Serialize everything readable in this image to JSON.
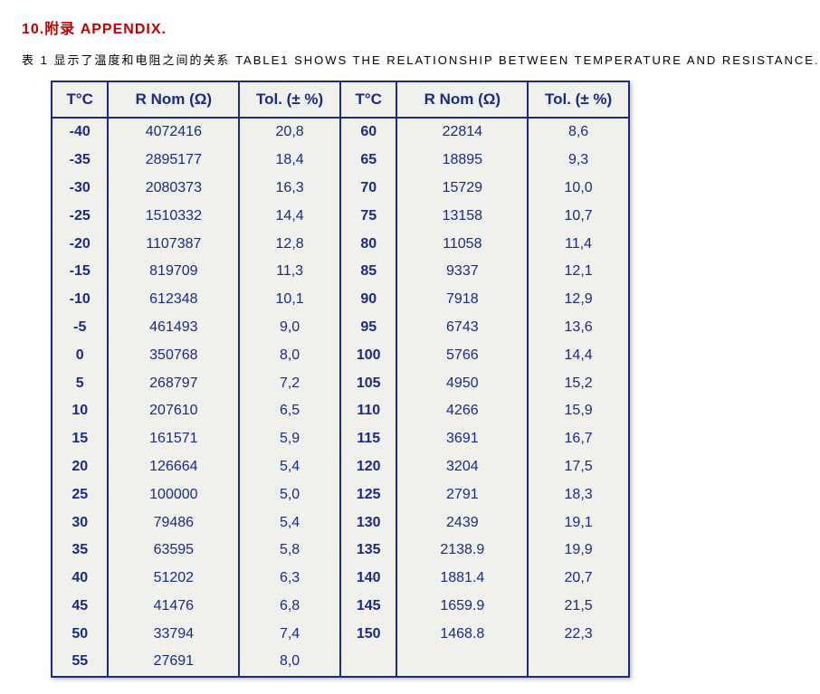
{
  "heading": "10.附录 APPENDIX.",
  "caption": "表 1 显示了温度和电阻之间的关系 TABLE1 SHOWS THE RELATIONSHIP BETWEEN TEMPERATURE AND RESISTANCE.",
  "table": {
    "type": "table",
    "colors": {
      "heading_text": "#c00000",
      "caption_text": "#000000",
      "cell_text": "#1a2a8a",
      "border": "#1a2a8a",
      "background": "#f0f0ec"
    },
    "typography": {
      "header_fontsize_pt": 13,
      "body_fontsize_pt": 12,
      "tc_fontweight": "bold",
      "font_family": "Arial"
    },
    "columns": [
      {
        "label": "T°C",
        "width_pct": 9.5,
        "align": "center"
      },
      {
        "label": "R Nom (Ω)",
        "width_pct": 22,
        "align": "center"
      },
      {
        "label": "Tol. (± %)",
        "width_pct": 17,
        "align": "center"
      },
      {
        "label": "T°C",
        "width_pct": 9.5,
        "align": "center"
      },
      {
        "label": "R Nom (Ω)",
        "width_pct": 22,
        "align": "center"
      },
      {
        "label": "Tol. (± %)",
        "width_pct": 17,
        "align": "center"
      }
    ],
    "left_block": [
      {
        "tc": "-40",
        "rnom": "4072416",
        "tol": "20,8"
      },
      {
        "tc": "-35",
        "rnom": "2895177",
        "tol": "18,4"
      },
      {
        "tc": "-30",
        "rnom": "2080373",
        "tol": "16,3"
      },
      {
        "tc": "-25",
        "rnom": "1510332",
        "tol": "14,4"
      },
      {
        "tc": "-20",
        "rnom": "1107387",
        "tol": "12,8"
      },
      {
        "tc": "-15",
        "rnom": "819709",
        "tol": "11,3"
      },
      {
        "tc": "-10",
        "rnom": "612348",
        "tol": "10,1"
      },
      {
        "tc": "-5",
        "rnom": "461493",
        "tol": "9,0"
      },
      {
        "tc": "0",
        "rnom": "350768",
        "tol": "8,0"
      },
      {
        "tc": "5",
        "rnom": "268797",
        "tol": "7,2"
      },
      {
        "tc": "10",
        "rnom": "207610",
        "tol": "6,5"
      },
      {
        "tc": "15",
        "rnom": "161571",
        "tol": "5,9"
      },
      {
        "tc": "20",
        "rnom": "126664",
        "tol": "5,4"
      },
      {
        "tc": "25",
        "rnom": "100000",
        "tol": "5,0"
      },
      {
        "tc": "30",
        "rnom": "79486",
        "tol": "5,4"
      },
      {
        "tc": "35",
        "rnom": "63595",
        "tol": "5,8"
      },
      {
        "tc": "40",
        "rnom": "51202",
        "tol": "6,3"
      },
      {
        "tc": "45",
        "rnom": "41476",
        "tol": "6,8"
      },
      {
        "tc": "50",
        "rnom": "33794",
        "tol": "7,4"
      },
      {
        "tc": "55",
        "rnom": "27691",
        "tol": "8,0"
      }
    ],
    "right_block": [
      {
        "tc": "60",
        "rnom": "22814",
        "tol": "8,6"
      },
      {
        "tc": "65",
        "rnom": "18895",
        "tol": "9,3"
      },
      {
        "tc": "70",
        "rnom": "15729",
        "tol": "10,0"
      },
      {
        "tc": "75",
        "rnom": "13158",
        "tol": "10,7"
      },
      {
        "tc": "80",
        "rnom": "11058",
        "tol": "11,4"
      },
      {
        "tc": "85",
        "rnom": "9337",
        "tol": "12,1"
      },
      {
        "tc": "90",
        "rnom": "7918",
        "tol": "12,9"
      },
      {
        "tc": "95",
        "rnom": "6743",
        "tol": "13,6"
      },
      {
        "tc": "100",
        "rnom": "5766",
        "tol": "14,4"
      },
      {
        "tc": "105",
        "rnom": "4950",
        "tol": "15,2"
      },
      {
        "tc": "110",
        "rnom": "4266",
        "tol": "15,9"
      },
      {
        "tc": "115",
        "rnom": "3691",
        "tol": "16,7"
      },
      {
        "tc": "120",
        "rnom": "3204",
        "tol": "17,5"
      },
      {
        "tc": "125",
        "rnom": "2791",
        "tol": "18,3"
      },
      {
        "tc": "130",
        "rnom": "2439",
        "tol": "19,1"
      },
      {
        "tc": "135",
        "rnom": "2138.9",
        "tol": "19,9"
      },
      {
        "tc": "140",
        "rnom": "1881.4",
        "tol": "20,7"
      },
      {
        "tc": "145",
        "rnom": "1659.9",
        "tol": "21,5"
      },
      {
        "tc": "150",
        "rnom": "1468.8",
        "tol": "22,3"
      },
      {
        "tc": "",
        "rnom": "",
        "tol": ""
      }
    ]
  }
}
